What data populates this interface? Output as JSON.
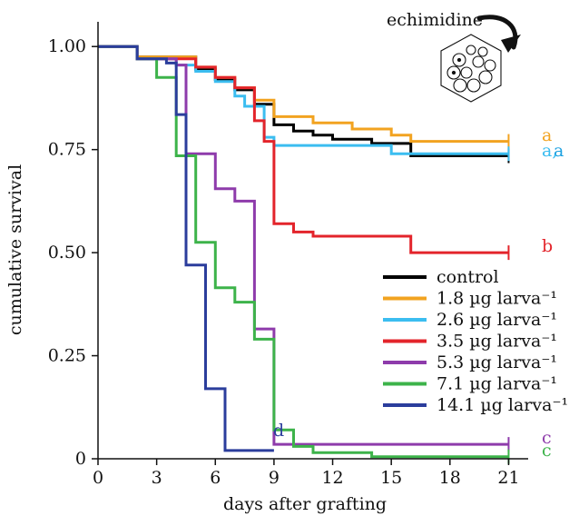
{
  "chart_data": {
    "type": "line",
    "title": "",
    "xlabel": "days after grafting",
    "ylabel": "cumulative survival",
    "xlim": [
      0,
      22
    ],
    "ylim": [
      0,
      1.06
    ],
    "x_ticks": [
      0,
      3,
      6,
      9,
      12,
      15,
      18,
      21
    ],
    "x_tick_labels": [
      "0",
      "3",
      "6",
      "9",
      "12",
      "15",
      "18",
      "21"
    ],
    "y_ticks": [
      0,
      0.25,
      0.5,
      0.75,
      1.0
    ],
    "y_tick_labels": [
      "0",
      "0.25",
      "0.50",
      "0.75",
      "1.00"
    ],
    "legend_position": "lower-right",
    "annotation": "echimidine",
    "series": [
      {
        "name": "control",
        "color": "#000000",
        "end_label": "a",
        "end_label_color": "#1aa0e0",
        "points": [
          [
            0,
            1.0
          ],
          [
            2,
            1.0
          ],
          [
            2,
            0.975
          ],
          [
            5,
            0.975
          ],
          [
            5,
            0.945
          ],
          [
            6,
            0.945
          ],
          [
            6,
            0.92
          ],
          [
            7,
            0.92
          ],
          [
            7,
            0.895
          ],
          [
            8,
            0.895
          ],
          [
            8,
            0.86
          ],
          [
            9,
            0.86
          ],
          [
            9,
            0.81
          ],
          [
            10,
            0.81
          ],
          [
            10,
            0.795
          ],
          [
            11,
            0.795
          ],
          [
            11,
            0.785
          ],
          [
            12,
            0.785
          ],
          [
            12,
            0.775
          ],
          [
            14,
            0.775
          ],
          [
            14,
            0.765
          ],
          [
            16,
            0.765
          ],
          [
            16,
            0.735
          ],
          [
            21,
            0.735
          ]
        ]
      },
      {
        "name": "1.8 µg larva⁻¹",
        "color": "#f2a320",
        "end_label": "a",
        "end_label_color": "#f2a320",
        "points": [
          [
            0,
            1.0
          ],
          [
            2,
            1.0
          ],
          [
            2,
            0.975
          ],
          [
            5,
            0.975
          ],
          [
            5,
            0.95
          ],
          [
            6,
            0.95
          ],
          [
            6,
            0.925
          ],
          [
            7,
            0.925
          ],
          [
            7,
            0.9
          ],
          [
            8,
            0.9
          ],
          [
            8,
            0.87
          ],
          [
            9,
            0.87
          ],
          [
            9,
            0.83
          ],
          [
            11,
            0.83
          ],
          [
            11,
            0.815
          ],
          [
            13,
            0.815
          ],
          [
            13,
            0.8
          ],
          [
            15,
            0.8
          ],
          [
            15,
            0.785
          ],
          [
            16,
            0.785
          ],
          [
            16,
            0.77
          ],
          [
            21,
            0.77
          ]
        ]
      },
      {
        "name": "2.6 µg larva⁻¹",
        "color": "#3bbdf0",
        "end_label": "a,",
        "end_label_color": "#3bbdf0",
        "points": [
          [
            0,
            1.0
          ],
          [
            2,
            1.0
          ],
          [
            2,
            0.97
          ],
          [
            4,
            0.97
          ],
          [
            4,
            0.955
          ],
          [
            5,
            0.955
          ],
          [
            5,
            0.94
          ],
          [
            6,
            0.94
          ],
          [
            6,
            0.915
          ],
          [
            7,
            0.915
          ],
          [
            7,
            0.88
          ],
          [
            7.5,
            0.88
          ],
          [
            7.5,
            0.855
          ],
          [
            8.5,
            0.855
          ],
          [
            8.5,
            0.78
          ],
          [
            9,
            0.78
          ],
          [
            9,
            0.76
          ],
          [
            15,
            0.76
          ],
          [
            15,
            0.74
          ],
          [
            21,
            0.74
          ]
        ]
      },
      {
        "name": "3.5 µg larva⁻¹",
        "color": "#e3242b",
        "end_label": "b",
        "end_label_color": "#e3242b",
        "points": [
          [
            0,
            1.0
          ],
          [
            2,
            1.0
          ],
          [
            2,
            0.97
          ],
          [
            5,
            0.97
          ],
          [
            5,
            0.95
          ],
          [
            6,
            0.95
          ],
          [
            6,
            0.925
          ],
          [
            7,
            0.925
          ],
          [
            7,
            0.9
          ],
          [
            8,
            0.9
          ],
          [
            8,
            0.82
          ],
          [
            8.5,
            0.82
          ],
          [
            8.5,
            0.77
          ],
          [
            9,
            0.77
          ],
          [
            9,
            0.57
          ],
          [
            10,
            0.57
          ],
          [
            10,
            0.55
          ],
          [
            11,
            0.55
          ],
          [
            11,
            0.54
          ],
          [
            16,
            0.54
          ],
          [
            16,
            0.5
          ],
          [
            21,
            0.5
          ]
        ]
      },
      {
        "name": "5.3 µg larva⁻¹",
        "color": "#8e3bab",
        "end_label": "c",
        "end_label_color": "#8e3bab",
        "points": [
          [
            0,
            1.0
          ],
          [
            2,
            1.0
          ],
          [
            2,
            0.97
          ],
          [
            4,
            0.97
          ],
          [
            4,
            0.955
          ],
          [
            4.5,
            0.955
          ],
          [
            4.5,
            0.74
          ],
          [
            6,
            0.74
          ],
          [
            6,
            0.655
          ],
          [
            7,
            0.655
          ],
          [
            7,
            0.625
          ],
          [
            8,
            0.625
          ],
          [
            8,
            0.315
          ],
          [
            9,
            0.315
          ],
          [
            9,
            0.035
          ],
          [
            21,
            0.035
          ]
        ]
      },
      {
        "name": "7.1 µg larva⁻¹",
        "color": "#3db34a",
        "end_label": "c",
        "end_label_color": "#3db34a",
        "points": [
          [
            0,
            1.0
          ],
          [
            2,
            1.0
          ],
          [
            2,
            0.97
          ],
          [
            3,
            0.97
          ],
          [
            3,
            0.925
          ],
          [
            4,
            0.925
          ],
          [
            4,
            0.735
          ],
          [
            5,
            0.735
          ],
          [
            5,
            0.525
          ],
          [
            6,
            0.525
          ],
          [
            6,
            0.415
          ],
          [
            7,
            0.415
          ],
          [
            7,
            0.38
          ],
          [
            8,
            0.38
          ],
          [
            8,
            0.29
          ],
          [
            9,
            0.29
          ],
          [
            9,
            0.07
          ],
          [
            10,
            0.07
          ],
          [
            10,
            0.03
          ],
          [
            11,
            0.03
          ],
          [
            11,
            0.015
          ],
          [
            14,
            0.015
          ],
          [
            14,
            0.005
          ],
          [
            21,
            0.005
          ]
        ]
      },
      {
        "name": "14.1 µg larva⁻¹",
        "color": "#2b3d9c",
        "end_label": "d",
        "end_label_color": "#2b3d9c",
        "points": [
          [
            0,
            1.0
          ],
          [
            2,
            1.0
          ],
          [
            2,
            0.97
          ],
          [
            3.5,
            0.97
          ],
          [
            3.5,
            0.96
          ],
          [
            4,
            0.96
          ],
          [
            4,
            0.835
          ],
          [
            4.5,
            0.835
          ],
          [
            4.5,
            0.47
          ],
          [
            5.5,
            0.47
          ],
          [
            5.5,
            0.17
          ],
          [
            6.5,
            0.17
          ],
          [
            6.5,
            0.02
          ],
          [
            9,
            0.02
          ]
        ]
      }
    ]
  }
}
